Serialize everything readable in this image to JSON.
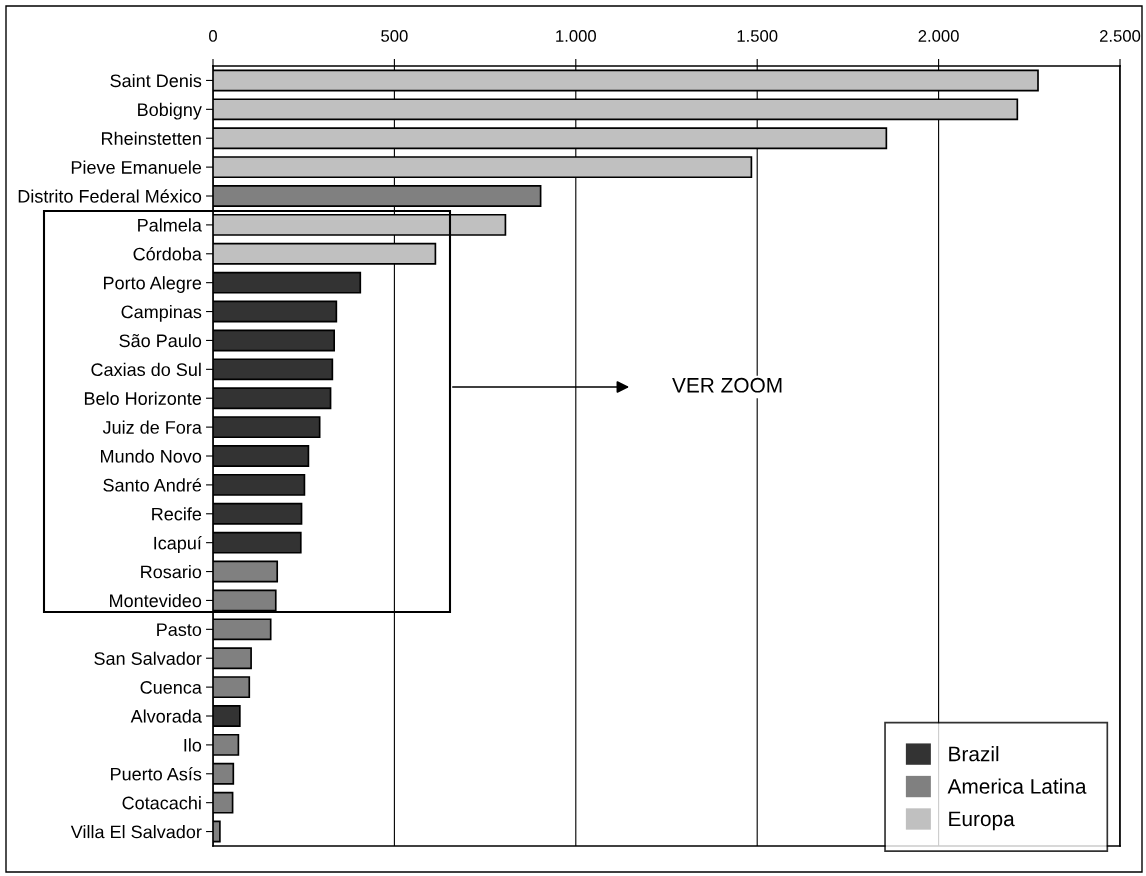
{
  "chart_data": {
    "type": "bar",
    "orientation": "horizontal",
    "categories": [
      "Saint Denis",
      "Bobigny",
      "Rheinstetten",
      "Pieve Emanuele",
      "Distrito Federal México",
      "Palmela",
      "Córdoba",
      "Porto Alegre",
      "Campinas",
      "São Paulo",
      "Caxias do Sul",
      "Belo Horizonte",
      "Juiz de Fora",
      "Mundo Novo",
      "Santo André",
      "Recife",
      "Icapuí",
      "Rosario",
      "Montevideo",
      "Pasto",
      "San Salvador",
      "Cuenca",
      "Alvorada",
      "Ilo",
      "Puerto Asís",
      "Cotacachi",
      "Villa El Salvador"
    ],
    "series": [
      {
        "name": "Brazil",
        "color": "#333333",
        "values": [
          null,
          null,
          null,
          null,
          null,
          null,
          null,
          406,
          340,
          334,
          329,
          324,
          294,
          263,
          252,
          244,
          242,
          null,
          null,
          null,
          null,
          null,
          74,
          null,
          null,
          null,
          null
        ]
      },
      {
        "name": "America Latina",
        "color": "#808080",
        "values": [
          null,
          null,
          null,
          null,
          903,
          null,
          null,
          null,
          null,
          null,
          null,
          null,
          null,
          null,
          null,
          null,
          null,
          177,
          173,
          159,
          105,
          100,
          null,
          70,
          56,
          54,
          19
        ]
      },
      {
        "name": "Europa",
        "color": "#c0c0c0",
        "values": [
          2274,
          2217,
          1856,
          1484,
          null,
          806,
          613,
          null,
          null,
          null,
          null,
          null,
          null,
          null,
          null,
          null,
          null,
          null,
          null,
          null,
          null,
          null,
          null,
          null,
          null,
          null,
          null
        ]
      }
    ],
    "xlim": [
      0,
      2500
    ],
    "xticks": [
      0,
      500,
      {
        "value": 1000,
        "label": "1.000"
      },
      {
        "value": 1500,
        "label": "1.500"
      },
      {
        "value": 2000,
        "label": "2.000"
      },
      {
        "value": 2500,
        "label": "2.500"
      }
    ],
    "grid": "x",
    "legend": "bottom right",
    "annotations": [
      "VER ZOOM"
    ]
  }
}
